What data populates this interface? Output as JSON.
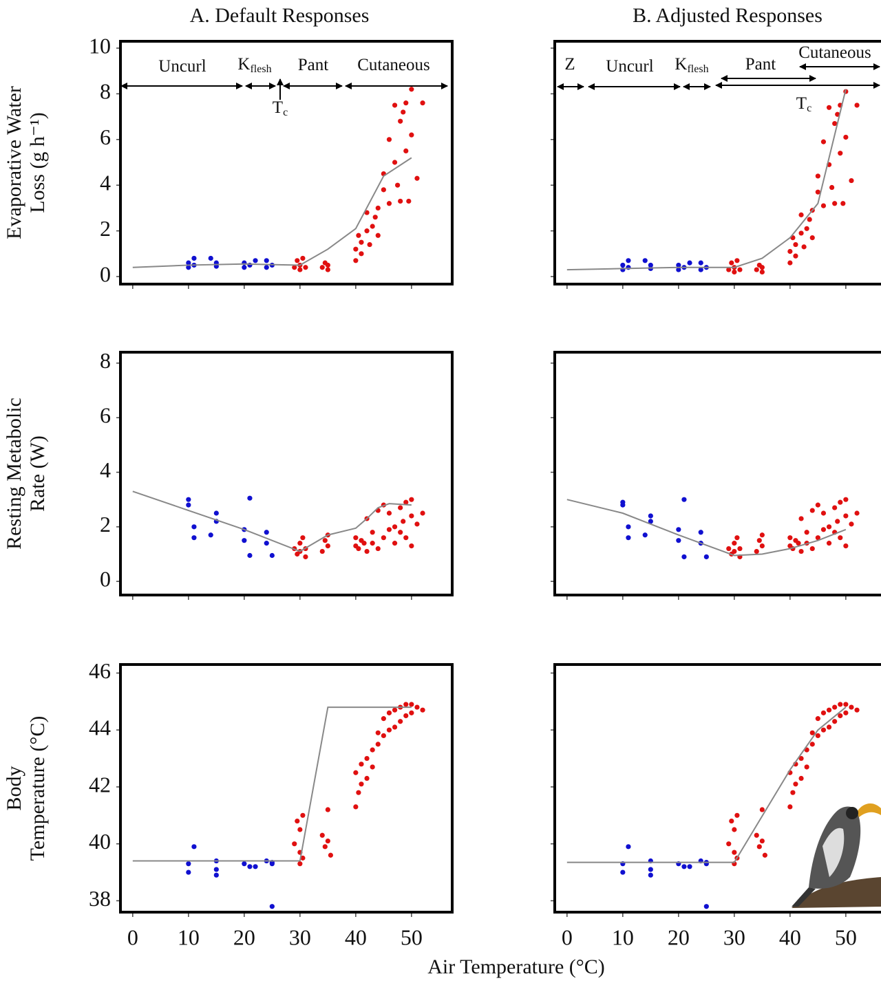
{
  "x_label": "Air Temperature (°C)",
  "chart_data": [
    {
      "type": "scatter",
      "title": "A. Default Responses",
      "y_label": [
        "Evaporative Water",
        "Loss (g h⁻¹)"
      ],
      "xlim": [
        -2.2,
        57.3
      ],
      "xticks": [
        0,
        10,
        20,
        30,
        40,
        50
      ],
      "show_xtick_labels": false,
      "ylim": [
        -0.33,
        10.3
      ],
      "yticks": [
        0,
        2,
        4,
        6,
        8,
        10
      ],
      "show_ytick_labels": true,
      "annotations": [
        {
          "text": "Uncurl"
        },
        {
          "text": "K",
          "sub": "flesh"
        },
        {
          "text": "Pant"
        },
        {
          "text": "Cutaneous"
        },
        {
          "text": "T",
          "sub": "c"
        }
      ],
      "series": [
        {
          "type": "scatter",
          "color": "#1010d0",
          "x": [
            10,
            10,
            11,
            11,
            14,
            15,
            15,
            20,
            20,
            21,
            22,
            24,
            24,
            25
          ],
          "values": [
            0.4,
            0.6,
            0.5,
            0.8,
            0.8,
            0.6,
            0.45,
            0.4,
            0.6,
            0.5,
            0.7,
            0.4,
            0.7,
            0.5
          ]
        },
        {
          "type": "scatter",
          "color": "#e01010",
          "x": [
            29,
            29.5,
            30,
            30,
            30.5,
            31,
            34,
            34.5,
            35,
            35,
            40,
            40,
            40.5,
            41,
            41,
            42,
            42,
            42.5,
            43,
            43.5,
            44,
            44,
            45,
            45,
            46,
            46,
            47,
            47,
            47.5,
            48,
            48,
            48.5,
            49,
            49,
            49.5,
            50,
            50,
            51,
            52
          ],
          "values": [
            0.4,
            0.7,
            0.3,
            0.5,
            0.8,
            0.4,
            0.4,
            0.6,
            0.3,
            0.5,
            0.7,
            1.2,
            1.8,
            1.0,
            1.5,
            2.0,
            2.8,
            1.4,
            2.2,
            2.6,
            1.8,
            3.0,
            3.8,
            4.5,
            3.2,
            6.0,
            5.0,
            7.5,
            4.0,
            6.8,
            3.3,
            7.2,
            5.5,
            7.6,
            3.3,
            8.2,
            6.2,
            4.3,
            7.6
          ]
        },
        {
          "type": "line",
          "color": "#888888",
          "x": [
            0,
            10,
            20,
            30,
            35,
            40,
            45,
            50
          ],
          "values": [
            0.4,
            0.5,
            0.55,
            0.5,
            1.2,
            2.1,
            4.4,
            5.2
          ]
        }
      ]
    },
    {
      "type": "scatter",
      "title": "B. Adjusted Responses",
      "xlim": [
        -2.2,
        57.3
      ],
      "xticks": [
        0,
        10,
        20,
        30,
        40,
        50
      ],
      "show_xtick_labels": false,
      "ylim": [
        -0.33,
        10.3
      ],
      "yticks": [
        0,
        2,
        4,
        6,
        8,
        10
      ],
      "show_ytick_labels": false,
      "annotations": [
        {
          "text": "Z"
        },
        {
          "text": "Uncurl"
        },
        {
          "text": "K",
          "sub": "flesh"
        },
        {
          "text": "Pant"
        },
        {
          "text": "Cutaneous"
        },
        {
          "text": "T",
          "sub": "c"
        }
      ],
      "series": [
        {
          "type": "scatter",
          "color": "#1010d0",
          "x": [
            10,
            10,
            11,
            11,
            14,
            15,
            15,
            20,
            20,
            21,
            22,
            24,
            24,
            25
          ],
          "values": [
            0.3,
            0.5,
            0.4,
            0.7,
            0.7,
            0.5,
            0.35,
            0.3,
            0.5,
            0.4,
            0.6,
            0.3,
            0.6,
            0.4
          ]
        },
        {
          "type": "scatter",
          "color": "#e01010",
          "x": [
            29,
            29.5,
            30,
            30,
            30.5,
            31,
            34,
            34.5,
            35,
            35,
            40,
            40,
            40.5,
            41,
            41,
            42,
            42,
            42.5,
            43,
            43.5,
            44,
            44,
            45,
            45,
            46,
            46,
            47,
            47,
            47.5,
            48,
            48,
            48.5,
            49,
            49,
            49.5,
            50,
            50,
            51,
            52
          ],
          "values": [
            0.3,
            0.6,
            0.2,
            0.4,
            0.7,
            0.3,
            0.3,
            0.5,
            0.2,
            0.4,
            0.6,
            1.1,
            1.7,
            0.9,
            1.4,
            1.9,
            2.7,
            1.3,
            2.1,
            2.5,
            1.7,
            2.9,
            3.7,
            4.4,
            3.1,
            5.9,
            4.9,
            7.4,
            3.9,
            6.7,
            3.2,
            7.1,
            5.4,
            7.5,
            3.2,
            8.1,
            6.1,
            4.2,
            7.5
          ]
        },
        {
          "type": "line",
          "color": "#888888",
          "x": [
            0,
            10,
            20,
            30,
            35,
            40,
            45,
            50
          ],
          "values": [
            0.3,
            0.35,
            0.4,
            0.4,
            0.8,
            1.7,
            3.2,
            8.2
          ]
        }
      ]
    },
    {
      "type": "scatter",
      "y_label": [
        "Resting Metabolic",
        "Rate (W)"
      ],
      "xlim": [
        -2.2,
        57.3
      ],
      "xticks": [
        0,
        10,
        20,
        30,
        40,
        50
      ],
      "show_xtick_labels": false,
      "ylim": [
        -0.5,
        8.4
      ],
      "yticks": [
        0,
        2,
        4,
        6,
        8
      ],
      "show_ytick_labels": true,
      "series": [
        {
          "type": "scatter",
          "color": "#1010d0",
          "x": [
            10,
            10,
            11,
            11,
            14,
            15,
            15,
            20,
            20,
            21,
            21,
            24,
            24,
            25
          ],
          "values": [
            2.8,
            3.0,
            2.0,
            1.6,
            1.7,
            2.2,
            2.5,
            1.5,
            1.9,
            0.95,
            3.05,
            1.4,
            1.8,
            0.95
          ]
        },
        {
          "type": "scatter",
          "color": "#e01010",
          "x": [
            29,
            29.5,
            30,
            30,
            30.5,
            31,
            31,
            34,
            34.5,
            35,
            35,
            40,
            40,
            40.5,
            41,
            41.5,
            42,
            42,
            43,
            43,
            44,
            44,
            45,
            45,
            46,
            46,
            47,
            47,
            48,
            48,
            48.5,
            49,
            49,
            50,
            50,
            50,
            51,
            52
          ],
          "values": [
            1.2,
            1.0,
            1.1,
            1.4,
            1.6,
            1.2,
            0.9,
            1.1,
            1.5,
            1.3,
            1.7,
            1.3,
            1.6,
            1.2,
            1.5,
            1.4,
            1.1,
            2.3,
            1.4,
            1.8,
            1.2,
            2.6,
            1.6,
            2.8,
            1.9,
            2.5,
            1.4,
            2.0,
            1.8,
            2.7,
            2.2,
            1.6,
            2.9,
            1.3,
            2.4,
            3.0,
            2.1,
            2.5
          ]
        },
        {
          "type": "line",
          "color": "#888888",
          "x": [
            0,
            10,
            20,
            30,
            35,
            40,
            42,
            44,
            46,
            50
          ],
          "values": [
            3.3,
            2.6,
            1.9,
            1.1,
            1.7,
            1.95,
            2.3,
            2.7,
            2.85,
            2.8
          ]
        }
      ]
    },
    {
      "type": "scatter",
      "xlim": [
        -2.2,
        57.3
      ],
      "xticks": [
        0,
        10,
        20,
        30,
        40,
        50
      ],
      "show_xtick_labels": false,
      "ylim": [
        -0.5,
        8.4
      ],
      "yticks": [
        0,
        2,
        4,
        6,
        8
      ],
      "show_ytick_labels": false,
      "series": [
        {
          "type": "scatter",
          "color": "#1010d0",
          "x": [
            10,
            10,
            11,
            11,
            14,
            15,
            15,
            20,
            20,
            21,
            21,
            24,
            24,
            25
          ],
          "values": [
            2.8,
            2.9,
            2.0,
            1.6,
            1.7,
            2.2,
            2.4,
            1.5,
            1.9,
            0.9,
            3.0,
            1.4,
            1.8,
            0.9
          ]
        },
        {
          "type": "scatter",
          "color": "#e01010",
          "x": [
            29,
            29.5,
            30,
            30,
            30.5,
            31,
            31,
            34,
            34.5,
            35,
            35,
            40,
            40,
            40.5,
            41,
            41.5,
            42,
            42,
            43,
            43,
            44,
            44,
            45,
            45,
            46,
            46,
            47,
            47,
            48,
            48,
            48.5,
            49,
            49,
            50,
            50,
            50,
            51,
            52
          ],
          "values": [
            1.2,
            1.0,
            1.1,
            1.4,
            1.6,
            1.2,
            0.9,
            1.1,
            1.5,
            1.3,
            1.7,
            1.3,
            1.6,
            1.2,
            1.5,
            1.4,
            1.1,
            2.3,
            1.4,
            1.8,
            1.2,
            2.6,
            1.6,
            2.8,
            1.9,
            2.5,
            1.4,
            2.0,
            1.8,
            2.7,
            2.2,
            1.6,
            2.9,
            1.3,
            2.4,
            3.0,
            2.1,
            2.5
          ]
        },
        {
          "type": "line",
          "color": "#888888",
          "x": [
            0,
            10,
            20,
            30,
            35,
            40,
            45,
            50
          ],
          "values": [
            3.0,
            2.5,
            1.7,
            0.95,
            1.0,
            1.2,
            1.5,
            1.9
          ]
        }
      ]
    },
    {
      "type": "scatter",
      "y_label": [
        "Body",
        "Temperature (°C)"
      ],
      "xlim": [
        -2.2,
        57.3
      ],
      "xticks": [
        0,
        10,
        20,
        30,
        40,
        50
      ],
      "show_xtick_labels": true,
      "ylim": [
        37.6,
        46.3
      ],
      "yticks": [
        38,
        40,
        42,
        44,
        46
      ],
      "show_ytick_labels": true,
      "series": [
        {
          "type": "scatter",
          "color": "#1010d0",
          "x": [
            10,
            10,
            11,
            15,
            15,
            15,
            20,
            21,
            22,
            24,
            25,
            25,
            25
          ],
          "values": [
            39.0,
            39.3,
            39.9,
            38.9,
            39.1,
            39.4,
            39.3,
            39.2,
            39.2,
            39.4,
            39.3,
            37.8,
            39.35
          ]
        },
        {
          "type": "scatter",
          "color": "#e01010",
          "x": [
            29,
            29.5,
            30,
            30,
            30,
            30.5,
            30.5,
            34,
            34.5,
            35,
            35,
            35.5,
            40,
            40,
            40.5,
            41,
            41,
            42,
            42,
            43,
            43,
            44,
            44,
            45,
            45,
            46,
            46,
            47,
            47,
            48,
            48,
            49,
            49,
            50,
            50,
            51,
            52
          ],
          "values": [
            40.0,
            40.8,
            39.3,
            39.7,
            40.5,
            39.5,
            41.0,
            40.3,
            39.9,
            41.2,
            40.1,
            39.6,
            41.3,
            42.5,
            41.8,
            42.1,
            42.8,
            42.3,
            43.0,
            42.7,
            43.3,
            43.5,
            43.9,
            43.8,
            44.4,
            44.0,
            44.6,
            44.1,
            44.7,
            44.3,
            44.8,
            44.5,
            44.9,
            44.6,
            44.9,
            44.8,
            44.7
          ]
        },
        {
          "type": "line",
          "color": "#888888",
          "x": [
            0,
            30,
            35,
            50
          ],
          "values": [
            39.4,
            39.4,
            44.8,
            44.8
          ]
        }
      ]
    },
    {
      "type": "scatter",
      "xlim": [
        -2.2,
        57.3
      ],
      "xticks": [
        0,
        10,
        20,
        30,
        40,
        50
      ],
      "show_xtick_labels": true,
      "ylim": [
        37.6,
        46.3
      ],
      "yticks": [
        38,
        40,
        42,
        44,
        46
      ],
      "show_ytick_labels": false,
      "series": [
        {
          "type": "scatter",
          "color": "#1010d0",
          "x": [
            10,
            10,
            11,
            15,
            15,
            15,
            20,
            21,
            22,
            24,
            25,
            25,
            25
          ],
          "values": [
            39.0,
            39.3,
            39.9,
            38.9,
            39.1,
            39.4,
            39.3,
            39.2,
            39.2,
            39.4,
            39.3,
            37.8,
            39.35
          ]
        },
        {
          "type": "scatter",
          "color": "#e01010",
          "x": [
            29,
            29.5,
            30,
            30,
            30,
            30.5,
            30.5,
            34,
            34.5,
            35,
            35,
            35.5,
            40,
            40,
            40.5,
            41,
            41,
            42,
            42,
            43,
            43,
            44,
            44,
            45,
            45,
            46,
            46,
            47,
            47,
            48,
            48,
            49,
            49,
            50,
            50,
            51,
            52
          ],
          "values": [
            40.0,
            40.8,
            39.3,
            39.7,
            40.5,
            39.5,
            41.0,
            40.3,
            39.9,
            41.2,
            40.1,
            39.6,
            41.3,
            42.5,
            41.8,
            42.1,
            42.8,
            42.3,
            43.0,
            42.7,
            43.3,
            43.5,
            43.9,
            43.8,
            44.4,
            44.0,
            44.6,
            44.1,
            44.7,
            44.3,
            44.8,
            44.5,
            44.9,
            44.6,
            44.9,
            44.8,
            44.7
          ]
        },
        {
          "type": "line",
          "color": "#888888",
          "x": [
            0,
            30,
            40,
            45,
            50
          ],
          "values": [
            39.35,
            39.35,
            42.6,
            44.0,
            44.8
          ]
        }
      ]
    }
  ]
}
